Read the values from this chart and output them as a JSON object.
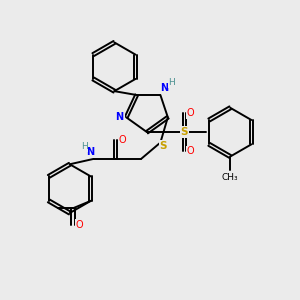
{
  "bg_color": "#ebebeb",
  "bond_color": "#000000",
  "atom_colors": {
    "N": "#0000ff",
    "O": "#ff0000",
    "S": "#c8a000",
    "H": "#4a9090",
    "C": "#000000"
  },
  "figsize": [
    3.0,
    3.0
  ],
  "dpi": 100
}
